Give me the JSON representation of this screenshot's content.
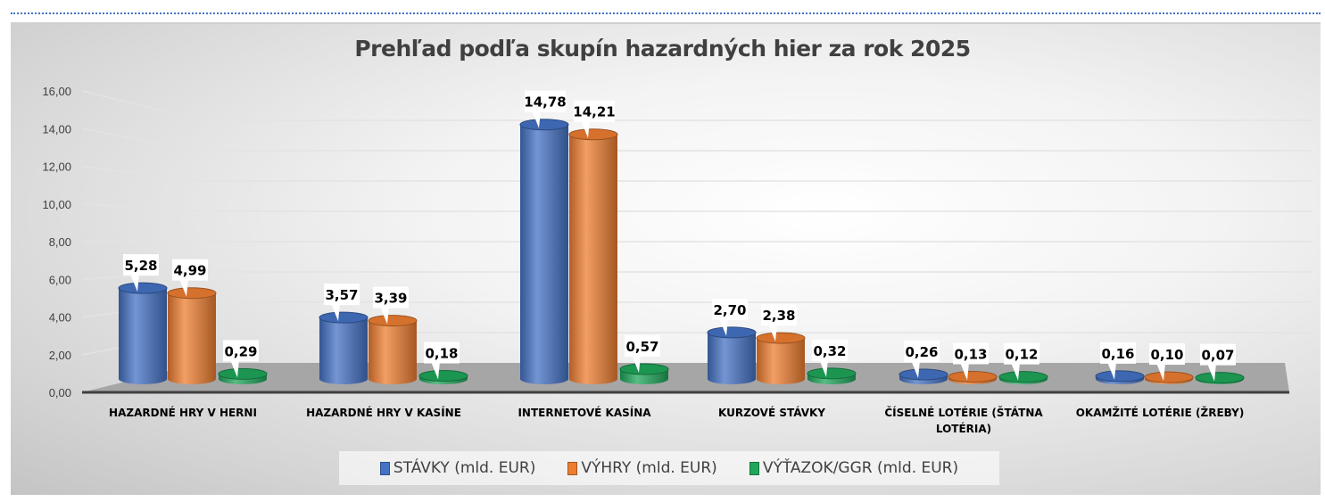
{
  "chart_data": {
    "type": "bar",
    "title": "Prehľad podľa skupín hazardných hier za rok 2025",
    "categories": [
      "HAZARDNÉ HRY V HERNI",
      "HAZARDNÉ HRY V KASÍNE",
      "INTERNETOVÉ KASÍNA",
      "KURZOVÉ STÁVKY",
      "ČÍSELNÉ LOTÉRIE (ŠTÁTNA LOTÉRIA)",
      "OKAMŽITÉ LOTÉRIE (ŽREBY)"
    ],
    "category_lines": [
      [
        "HAZARDNÉ HRY V HERNI"
      ],
      [
        "HAZARDNÉ HRY V KASÍNE"
      ],
      [
        "INTERNETOVÉ KASÍNA"
      ],
      [
        "KURZOVÉ STÁVKY"
      ],
      [
        "ČÍSELNÉ LOTÉRIE (ŠTÁTNA",
        "LOTÉRIA)"
      ],
      [
        "OKAMŽITÉ LOTÉRIE (ŽREBY)"
      ]
    ],
    "series": [
      {
        "name": "STÁVKY (mld. EUR)",
        "color": "#4472c4",
        "values": [
          5.28,
          3.57,
          14.78,
          2.7,
          0.26,
          0.16
        ],
        "labels": [
          "5,28",
          "3,57",
          "14,78",
          "2,70",
          "0,26",
          "0,16"
        ]
      },
      {
        "name": "VÝHRY (mld. EUR)",
        "color": "#ed7d31",
        "values": [
          4.99,
          3.39,
          14.21,
          2.38,
          0.13,
          0.1
        ],
        "labels": [
          "4,99",
          "3,39",
          "14,21",
          "2,38",
          "0,13",
          "0,10"
        ]
      },
      {
        "name": "VÝŤAZOK/GGR (mld. EUR)",
        "color": "#1fa65a",
        "values": [
          0.29,
          0.18,
          0.57,
          0.32,
          0.12,
          0.07
        ],
        "labels": [
          "0,29",
          "0,18",
          "0,57",
          "0,32",
          "0,12",
          "0,07"
        ]
      }
    ],
    "yticks": [
      "0,00",
      "2,00",
      "4,00",
      "6,00",
      "8,00",
      "10,00",
      "12,00",
      "14,00",
      "16,00"
    ],
    "ylim": [
      0,
      16
    ],
    "grid": true,
    "legend": "bottom",
    "style": "3d-cylinder"
  }
}
